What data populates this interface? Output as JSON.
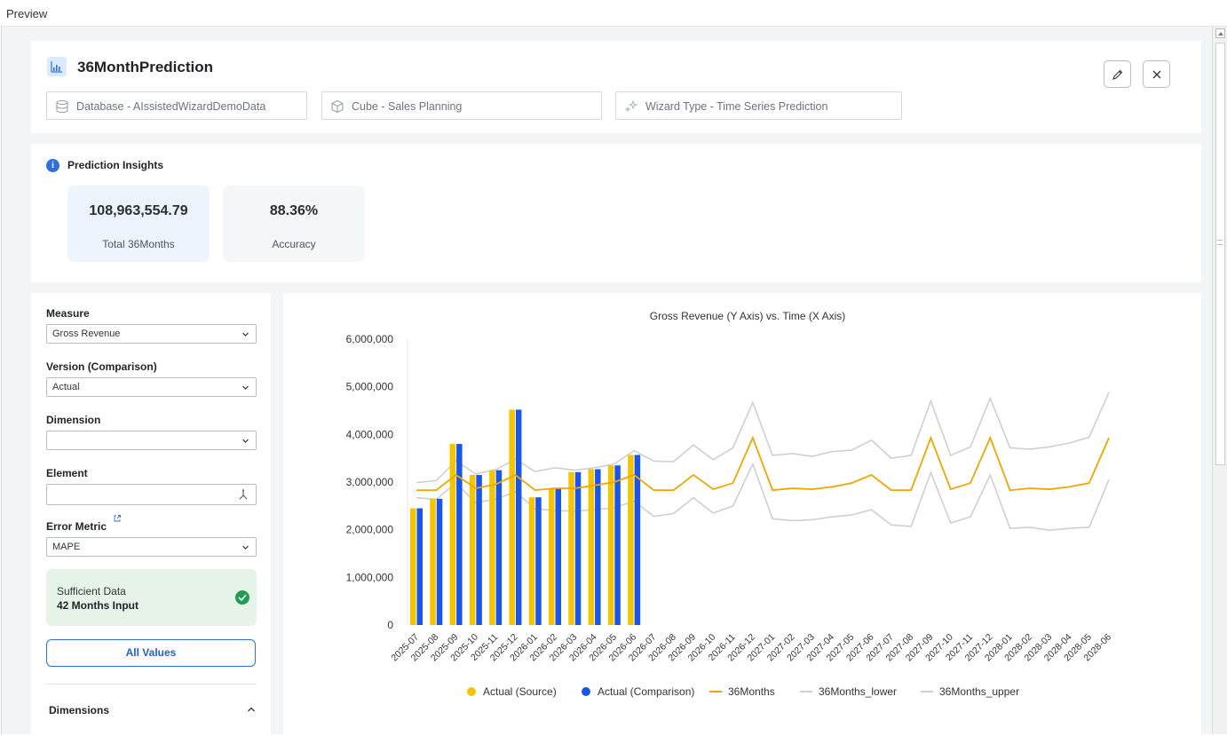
{
  "window": {
    "title": "Preview"
  },
  "header": {
    "title": "36MonthPrediction",
    "database": "Database - AIssistedWizardDemoData",
    "cube": "Cube - Sales Planning",
    "wizard_type": "Wizard Type - Time Series Prediction"
  },
  "insights": {
    "title": "Prediction Insights",
    "total": {
      "value": "108,963,554.79",
      "label": "Total 36Months"
    },
    "accuracy": {
      "value": "88.36%",
      "label": "Accuracy"
    }
  },
  "controls": {
    "measure": {
      "label": "Measure",
      "value": "Gross Revenue"
    },
    "version": {
      "label": "Version (Comparison)",
      "value": "Actual"
    },
    "dimension": {
      "label": "Dimension",
      "value": ""
    },
    "element": {
      "label": "Element",
      "value": ""
    },
    "error_metric": {
      "label": "Error Metric",
      "value": "MAPE"
    },
    "sufficient": {
      "line1": "Sufficient Data",
      "line2": "42 Months Input"
    },
    "all_values_label": "All Values",
    "dimensions_label": "Dimensions"
  },
  "colors": {
    "source": "#f5c400",
    "comparison": "#1a56e8",
    "forecast": "#f0a500",
    "band": "#cfcfcf",
    "accent": "#2f6fdc",
    "success": "#1f9d50"
  },
  "chart_data": {
    "type": "bar+line",
    "title": "Gross Revenue (Y Axis) vs. Time (X Axis)",
    "xlabel": "",
    "ylabel": "",
    "ylim": [
      0,
      6000000
    ],
    "yticks": [
      0,
      1000000,
      2000000,
      3000000,
      4000000,
      5000000,
      6000000
    ],
    "ytick_labels": [
      "0",
      "1,000,000",
      "2,000,000",
      "3,000,000",
      "4,000,000",
      "5,000,000",
      "6,000,000"
    ],
    "grid": false,
    "legend_position": "bottom",
    "categories": [
      "2025-07",
      "2025-08",
      "2025-09",
      "2025-10",
      "2025-11",
      "2025-12",
      "2026-01",
      "2026-02",
      "2026-03",
      "2026-04",
      "2026-05",
      "2026-06",
      "2026-07",
      "2026-08",
      "2026-09",
      "2026-10",
      "2026-11",
      "2026-12",
      "2027-01",
      "2027-02",
      "2027-03",
      "2027-04",
      "2027-05",
      "2027-06",
      "2027-07",
      "2027-08",
      "2027-09",
      "2027-10",
      "2027-11",
      "2027-12",
      "2028-01",
      "2028-02",
      "2028-03",
      "2028-04",
      "2028-05",
      "2028-06"
    ],
    "series": [
      {
        "name": "Actual (Source)",
        "kind": "bar",
        "values": [
          2450000,
          2650000,
          3800000,
          3150000,
          3250000,
          4520000,
          2680000,
          2870000,
          3210000,
          3270000,
          3350000,
          3570000,
          null,
          null,
          null,
          null,
          null,
          null,
          null,
          null,
          null,
          null,
          null,
          null,
          null,
          null,
          null,
          null,
          null,
          null,
          null,
          null,
          null,
          null,
          null,
          null
        ]
      },
      {
        "name": "Actual (Comparison)",
        "kind": "bar",
        "values": [
          2450000,
          2650000,
          3800000,
          3150000,
          3250000,
          4520000,
          2680000,
          2870000,
          3210000,
          3270000,
          3350000,
          3570000,
          null,
          null,
          null,
          null,
          null,
          null,
          null,
          null,
          null,
          null,
          null,
          null,
          null,
          null,
          null,
          null,
          null,
          null,
          null,
          null,
          null,
          null,
          null,
          null
        ]
      },
      {
        "name": "36Months",
        "kind": "line",
        "values": [
          2830000,
          2830000,
          3150000,
          2870000,
          2950000,
          3150000,
          2830000,
          2870000,
          2870000,
          2930000,
          3000000,
          3150000,
          2830000,
          2830000,
          3150000,
          2850000,
          2980000,
          3930000,
          2830000,
          2870000,
          2850000,
          2900000,
          2980000,
          3150000,
          2830000,
          2830000,
          3930000,
          2850000,
          2980000,
          3930000,
          2830000,
          2870000,
          2850000,
          2900000,
          2980000,
          3930000
        ]
      },
      {
        "name": "36Months_lower",
        "kind": "line",
        "values": [
          2670000,
          2640000,
          2980000,
          2570000,
          2640000,
          2800000,
          2440000,
          2400000,
          2390000,
          2420000,
          2460000,
          2600000,
          2280000,
          2340000,
          2670000,
          2350000,
          2500000,
          3380000,
          2230000,
          2190000,
          2210000,
          2270000,
          2310000,
          2420000,
          2100000,
          2070000,
          3200000,
          2140000,
          2270000,
          3150000,
          2030000,
          2050000,
          1990000,
          2030000,
          2050000,
          3050000
        ]
      },
      {
        "name": "36Months_upper",
        "kind": "line",
        "values": [
          2990000,
          3030000,
          3450000,
          3170000,
          3260000,
          3480000,
          3220000,
          3300000,
          3250000,
          3300000,
          3380000,
          3660000,
          3440000,
          3430000,
          3780000,
          3470000,
          3720000,
          4670000,
          3560000,
          3600000,
          3540000,
          3640000,
          3670000,
          3880000,
          3500000,
          3560000,
          4700000,
          3560000,
          3740000,
          4760000,
          3720000,
          3690000,
          3740000,
          3820000,
          3940000,
          4880000
        ]
      }
    ]
  }
}
